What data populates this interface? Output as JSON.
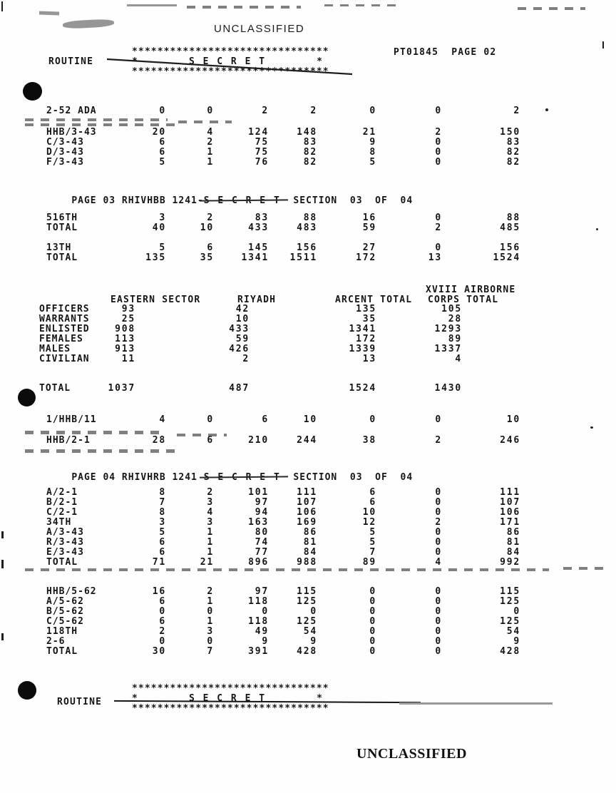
{
  "doc": {
    "classification_top": "UNCLASSIFIED",
    "classification_bottom": "UNCLASSIFIED",
    "page_ref": "PT01845  PAGE 02",
    "routine_top": "ROUTINE",
    "routine_bottom": "ROUTINE",
    "banner": {
      "stars": "*******************************",
      "star": "*",
      "secret": "S E C R E T"
    },
    "section_headers": {
      "page03": {
        "prefix": "PAGE 03 RHIVHBB 1241-",
        "struck": "S E C R E T",
        "suffix": "  SECTION  03  OF  04"
      },
      "page04": {
        "prefix": "PAGE 04 RHIVHRB 1241 ",
        "struck": "S E C R E T",
        "suffix": "  SECTION  03  OF  04"
      }
    }
  },
  "tables": {
    "t1": {
      "rows": [
        [
          "2-52 ADA",
          "0",
          "0",
          "2",
          "2",
          "0",
          "0",
          "2"
        ]
      ]
    },
    "t2": {
      "rows": [
        [
          "HHB/3-43",
          "20",
          "4",
          "124",
          "148",
          "21",
          "2",
          "150"
        ],
        [
          "C/3-43",
          "6",
          "2",
          "75",
          "83",
          "9",
          "0",
          "83"
        ],
        [
          "D/3-43",
          "6",
          "1",
          "75",
          "82",
          "8",
          "0",
          "82"
        ],
        [
          "F/3-43",
          "5",
          "1",
          "76",
          "82",
          "5",
          "0",
          "82"
        ]
      ]
    },
    "t3": {
      "rows": [
        [
          "516TH",
          "3",
          "2",
          "83",
          "88",
          "16",
          "0",
          "88"
        ],
        [
          "TOTAL",
          "40",
          "10",
          "433",
          "483",
          "59",
          "2",
          "485"
        ]
      ]
    },
    "t4": {
      "rows": [
        [
          "13TH",
          "5",
          "6",
          "145",
          "156",
          "27",
          "0",
          "156"
        ],
        [
          "TOTAL",
          "135",
          "35",
          "1341",
          "1511",
          "172",
          "13",
          "1524"
        ]
      ]
    },
    "t5": {
      "rows": [
        [
          "1/HHB/11",
          "4",
          "0",
          "6",
          "10",
          "0",
          "0",
          "10"
        ]
      ]
    },
    "t6": {
      "rows": [
        [
          "HHB/2-1",
          "28",
          "6",
          "210",
          "244",
          "38",
          "2",
          "246"
        ]
      ]
    },
    "t7": {
      "rows": [
        [
          "A/2-1",
          "8",
          "2",
          "101",
          "111",
          "6",
          "0",
          "111"
        ],
        [
          "B/2-1",
          "7",
          "3",
          "97",
          "107",
          "6",
          "0",
          "107"
        ],
        [
          "C/2-1",
          "8",
          "4",
          "94",
          "106",
          "10",
          "0",
          "106"
        ],
        [
          "34TH",
          "3",
          "3",
          "163",
          "169",
          "12",
          "2",
          "171"
        ],
        [
          "A/3-43",
          "5",
          "1",
          "80",
          "86",
          "5",
          "0",
          "86"
        ],
        [
          "R/3-43",
          "6",
          "1",
          "74",
          "81",
          "5",
          "0",
          "81"
        ],
        [
          "E/3-43",
          "6",
          "1",
          "77",
          "84",
          "7",
          "0",
          "84"
        ],
        [
          "TOTAL",
          "71",
          "21",
          "896",
          "988",
          "89",
          "4",
          "992"
        ]
      ]
    },
    "t8": {
      "rows": [
        [
          "HHB/5-62",
          "16",
          "2",
          "97",
          "115",
          "0",
          "0",
          "115"
        ],
        [
          "A/5-62",
          "6",
          "1",
          "118",
          "125",
          "0",
          "0",
          "125"
        ],
        [
          "B/5-62",
          "0",
          "0",
          "0",
          "0",
          "0",
          "0",
          "0"
        ],
        [
          "C/5-62",
          "6",
          "1",
          "118",
          "125",
          "0",
          "0",
          "125"
        ],
        [
          "118TH",
          "2",
          "3",
          "49",
          "54",
          "0",
          "0",
          "54"
        ],
        [
          "2-6",
          "0",
          "0",
          "9",
          "9",
          "0",
          "0",
          "9"
        ],
        [
          "TOTAL",
          "30",
          "7",
          "391",
          "428",
          "0",
          "0",
          "428"
        ]
      ]
    }
  },
  "summary": {
    "header_line1": "XVIII AIRBORNE",
    "header_eastern": "EASTERN SECTOR",
    "header_riyadh": "RIYADH",
    "header_arcent": "ARCENT TOTAL",
    "header_corps": "CORPS TOTAL",
    "rows": [
      [
        "OFFICERS",
        "93",
        "42",
        "135",
        "105"
      ],
      [
        "WARRANTS",
        "25",
        "10",
        "35",
        "28"
      ],
      [
        "ENLISTED",
        "908",
        "433",
        "1341",
        "1293"
      ],
      [
        "FEMALES",
        "113",
        "59",
        "172",
        "89"
      ],
      [
        "MALES",
        "913",
        "426",
        "1339",
        "1337"
      ],
      [
        "CIVILIAN",
        "11",
        "2",
        "13",
        "4"
      ]
    ],
    "total_row": [
      [
        "TOTAL",
        "1037",
        "487",
        "1524",
        "1430"
      ]
    ]
  }
}
